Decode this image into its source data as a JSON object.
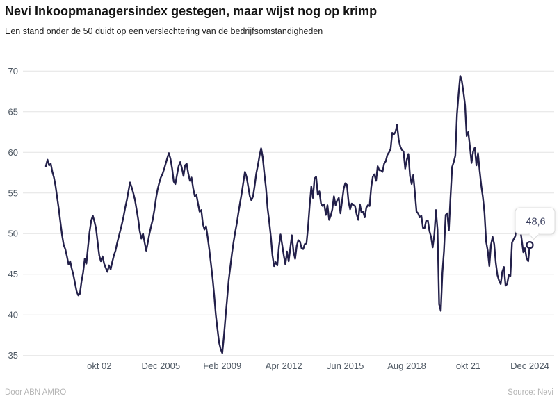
{
  "header": {
    "title": "Nevi Inkoopmanagersindex gestegen, maar wijst nog op krimp",
    "subtitle": "Een stand onder de 50 duidt op een verslechtering van de bedrijfsomstandigheden"
  },
  "footer": {
    "byline": "Door ABN AMRO",
    "source": "Source: Nevi"
  },
  "annotation": {
    "last_value_label": "48,6"
  },
  "colors": {
    "line": "#23204a",
    "grid": "#e3e3e3",
    "axis_tick_text": "#4e5863",
    "tooltip_border": "#dcdcdc",
    "tooltip_text": "#3c4160",
    "marker_fill": "#ffffff"
  },
  "chart_data": {
    "type": "line",
    "title": "Nevi Inkoopmanagersindex gestegen, maar wijst nog op krimp",
    "subtitle": "Een stand onder de 50 duidt op een verslechtering van de bedrijfsomstandigheden",
    "xlabel": "",
    "ylabel": "",
    "ylim": [
      35,
      70
    ],
    "y_ticks": [
      70,
      65,
      60,
      55,
      50,
      45,
      40,
      35
    ],
    "grid": "horizontal",
    "legend_position": "none",
    "frequency": "monthly",
    "x_start": "jan 2000",
    "x_end": "dec 2024",
    "x_ticks": [
      {
        "label": "okt 02",
        "month_index": 33
      },
      {
        "label": "Dec 2005",
        "month_index": 71
      },
      {
        "label": "Feb 2009",
        "month_index": 109
      },
      {
        "label": "Apr 2012",
        "month_index": 147
      },
      {
        "label": "Jun 2015",
        "month_index": 185
      },
      {
        "label": "Aug 2018",
        "month_index": 223
      },
      {
        "label": "okt 21",
        "month_index": 261
      },
      {
        "label": "Dec 2024",
        "month_index": 299
      }
    ],
    "last_value": 48.6,
    "series": [
      {
        "name": "Nevi Inkoopmanagersindex",
        "values": [
          58.3,
          59.1,
          58.4,
          58.6,
          57.6,
          56.9,
          55.8,
          54.4,
          53.0,
          51.4,
          49.8,
          48.6,
          48.1,
          47.2,
          46.2,
          46.6,
          45.7,
          44.9,
          43.9,
          42.9,
          42.4,
          42.6,
          44.1,
          45.2,
          46.9,
          46.3,
          48.3,
          50.2,
          51.6,
          52.2,
          51.5,
          50.6,
          48.9,
          47.3,
          46.6,
          47.2,
          46.3,
          45.8,
          45.3,
          46.1,
          45.6,
          46.5,
          47.3,
          47.9,
          48.8,
          49.6,
          50.4,
          51.2,
          52.1,
          53.2,
          54.1,
          55.2,
          56.3,
          55.7,
          55.0,
          54.2,
          53.0,
          51.8,
          50.3,
          49.4,
          50.0,
          48.9,
          47.9,
          48.9,
          50.0,
          50.9,
          51.7,
          52.9,
          54.3,
          55.4,
          56.2,
          56.9,
          57.3,
          57.9,
          58.6,
          59.3,
          59.9,
          59.2,
          58.0,
          56.4,
          56.1,
          57.2,
          58.3,
          58.8,
          58.1,
          57.1,
          58.4,
          58.6,
          57.4,
          56.5,
          56.9,
          55.6,
          54.6,
          54.8,
          53.7,
          52.7,
          52.9,
          51.2,
          50.5,
          50.9,
          49.5,
          48.0,
          46.3,
          44.5,
          42.4,
          40.0,
          38.3,
          36.6,
          35.8,
          35.3,
          37.4,
          39.8,
          42.0,
          44.3,
          46.0,
          47.6,
          49.0,
          50.2,
          51.3,
          52.6,
          53.8,
          55.0,
          56.3,
          57.6,
          57.0,
          55.8,
          54.6,
          54.1,
          54.6,
          55.9,
          57.4,
          58.4,
          59.6,
          60.5,
          59.4,
          57.4,
          55.6,
          53.1,
          51.5,
          49.6,
          47.3,
          46.0,
          46.5,
          46.1,
          48.4,
          49.9,
          48.6,
          47.3,
          46.2,
          47.8,
          46.6,
          48.2,
          49.8,
          47.8,
          46.9,
          48.5,
          49.2,
          49.0,
          48.2,
          48.1,
          48.7,
          48.8,
          50.8,
          53.5,
          55.8,
          54.4,
          56.8,
          57.0,
          54.8,
          55.2,
          53.7,
          53.4,
          53.6,
          52.3,
          53.5,
          51.7,
          52.2,
          53.0,
          54.6,
          53.5,
          54.1,
          54.4,
          52.5,
          54.0,
          55.5,
          56.2,
          56.0,
          53.9,
          53.0,
          53.7,
          53.5,
          53.4,
          52.4,
          51.7,
          53.6,
          52.6,
          52.7,
          52.0,
          53.2,
          53.5,
          53.4,
          55.7,
          57.0,
          57.3,
          56.5,
          58.3,
          57.8,
          57.8,
          57.6,
          58.6,
          58.9,
          59.7,
          60.0,
          60.4,
          62.4,
          62.2,
          62.5,
          63.4,
          61.5,
          60.7,
          60.3,
          60.1,
          58.0,
          59.1,
          59.8,
          57.1,
          56.1,
          57.2,
          55.1,
          52.7,
          52.5,
          52.0,
          52.2,
          50.7,
          50.7,
          51.6,
          51.6,
          50.3,
          49.6,
          48.3,
          49.9,
          52.9,
          50.5,
          41.3,
          40.5,
          45.2,
          47.9,
          52.3,
          52.5,
          50.4,
          54.4,
          58.2,
          58.8,
          59.6,
          64.7,
          67.2,
          69.4,
          68.8,
          67.4,
          65.8,
          62.0,
          62.5,
          60.7,
          58.7,
          60.1,
          60.6,
          58.4,
          59.9,
          57.8,
          55.9,
          54.5,
          52.6,
          49.0,
          47.9,
          46.0,
          48.6,
          49.6,
          48.7,
          46.4,
          44.9,
          44.2,
          43.8,
          45.3,
          45.9,
          43.6,
          43.8,
          44.9,
          44.8,
          48.9,
          49.3,
          49.7,
          51.3,
          52.5,
          50.7,
          49.2,
          47.7,
          48.2,
          47.0,
          46.6,
          48.6
        ]
      }
    ]
  }
}
